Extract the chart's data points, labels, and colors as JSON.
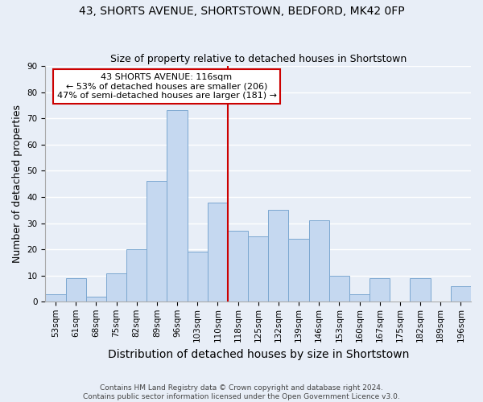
{
  "title1": "43, SHORTS AVENUE, SHORTSTOWN, BEDFORD, MK42 0FP",
  "title2": "Size of property relative to detached houses in Shortstown",
  "xlabel": "Distribution of detached houses by size in Shortstown",
  "ylabel": "Number of detached properties",
  "categories": [
    "53sqm",
    "61sqm",
    "68sqm",
    "75sqm",
    "82sqm",
    "89sqm",
    "96sqm",
    "103sqm",
    "110sqm",
    "118sqm",
    "125sqm",
    "132sqm",
    "139sqm",
    "146sqm",
    "153sqm",
    "160sqm",
    "167sqm",
    "175sqm",
    "182sqm",
    "189sqm",
    "196sqm"
  ],
  "values": [
    3,
    9,
    2,
    11,
    20,
    46,
    73,
    19,
    38,
    27,
    25,
    35,
    24,
    31,
    10,
    3,
    9,
    0,
    9,
    0,
    6
  ],
  "bar_color": "#c5d8f0",
  "bar_edge_color": "#7ba7d0",
  "background_color": "#e8eef7",
  "grid_color": "#ffffff",
  "property_line_x": 8.5,
  "annotation_line1": "43 SHORTS AVENUE: 116sqm",
  "annotation_line2": "← 53% of detached houses are smaller (206)",
  "annotation_line3": "47% of semi-detached houses are larger (181) →",
  "annotation_box_color": "#ffffff",
  "annotation_box_edge_color": "#cc0000",
  "vline_color": "#cc0000",
  "ylim": [
    0,
    90
  ],
  "yticks": [
    0,
    10,
    20,
    30,
    40,
    50,
    60,
    70,
    80,
    90
  ],
  "footer1": "Contains HM Land Registry data © Crown copyright and database right 2024.",
  "footer2": "Contains public sector information licensed under the Open Government Licence v3.0.",
  "title_fontsize": 10,
  "subtitle_fontsize": 9,
  "tick_fontsize": 7.5,
  "label_fontsize": 9,
  "footer_fontsize": 6.5,
  "annotation_fontsize": 8
}
